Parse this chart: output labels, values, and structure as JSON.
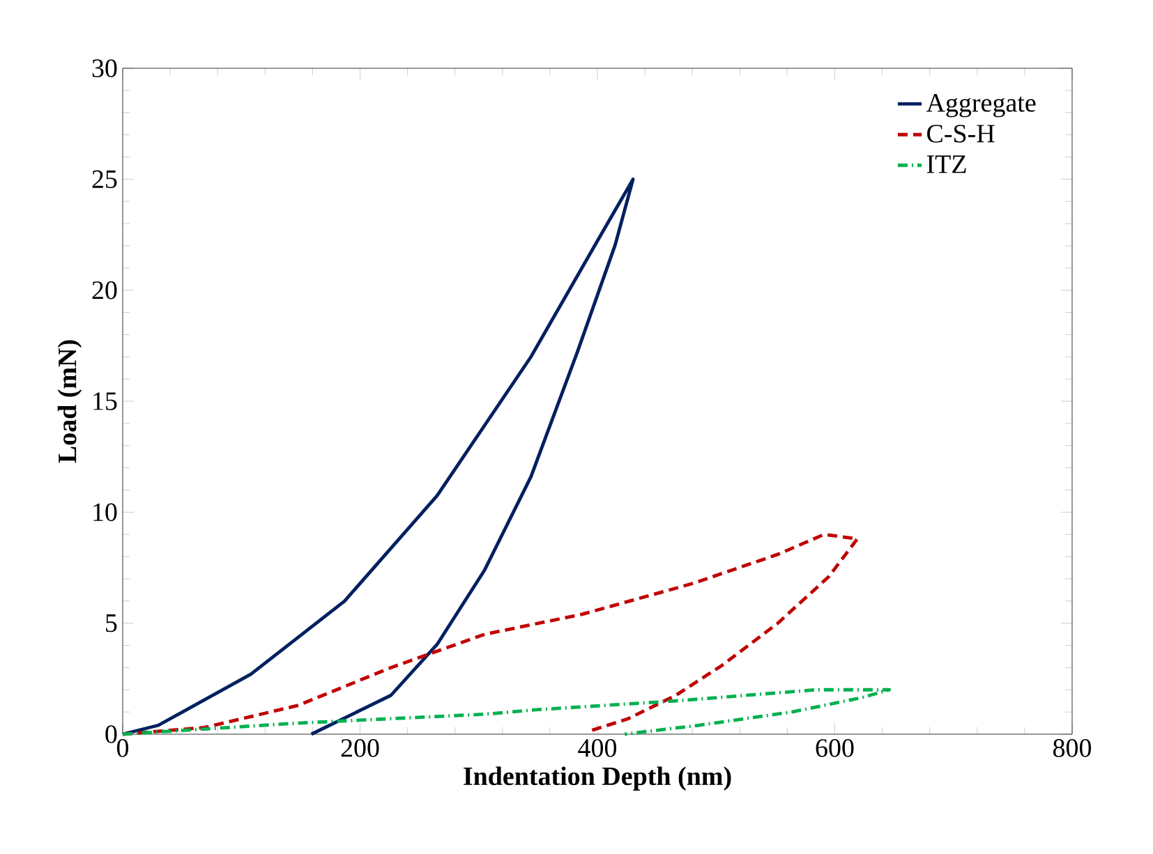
{
  "chart_data": {
    "type": "line",
    "xlabel": "Indentation Depth (nm)",
    "ylabel": "Load (mN)",
    "xlim": [
      0,
      800
    ],
    "ylim": [
      0,
      30
    ],
    "xticks": [
      0,
      200,
      400,
      600,
      800
    ],
    "yticks": [
      0,
      5,
      10,
      15,
      20,
      25,
      30
    ],
    "grid": false,
    "legend": "top right",
    "marker": "none",
    "series": [
      {
        "name": "Aggregate",
        "color": "#002060",
        "line_style": "solid",
        "x": [
          0,
          30,
          108,
          187,
          265,
          344,
          403,
          430,
          415,
          383,
          344,
          305,
          265,
          226,
          159
        ],
        "values": [
          0,
          0.4,
          2.7,
          6.0,
          10.75,
          17.0,
          22.5,
          25,
          22.05,
          17.2,
          11.6,
          7.4,
          4.05,
          1.75,
          0
        ]
      },
      {
        "name": "C-S-H",
        "color": "#c00000",
        "line_style": "dashed",
        "x": [
          0,
          69,
          148,
          226,
          305,
          387,
          481,
          552,
          591,
          619,
          595,
          552,
          505,
          466,
          426,
          391
        ],
        "values": [
          0,
          0.3,
          1.3,
          3.0,
          4.5,
          5.4,
          6.8,
          8.1,
          9.0,
          8.8,
          7.1,
          5.0,
          3.1,
          1.75,
          0.7,
          0.1
        ]
      },
      {
        "name": "ITZ",
        "color": "#00b050",
        "line_style": "dashdot",
        "x": [
          0,
          148,
          305,
          348,
          466,
          584,
          646,
          623,
          564,
          485,
          423
        ],
        "values": [
          0,
          0.5,
          0.9,
          1.1,
          1.5,
          2.0,
          2.0,
          1.65,
          1.0,
          0.4,
          0
        ]
      }
    ]
  }
}
